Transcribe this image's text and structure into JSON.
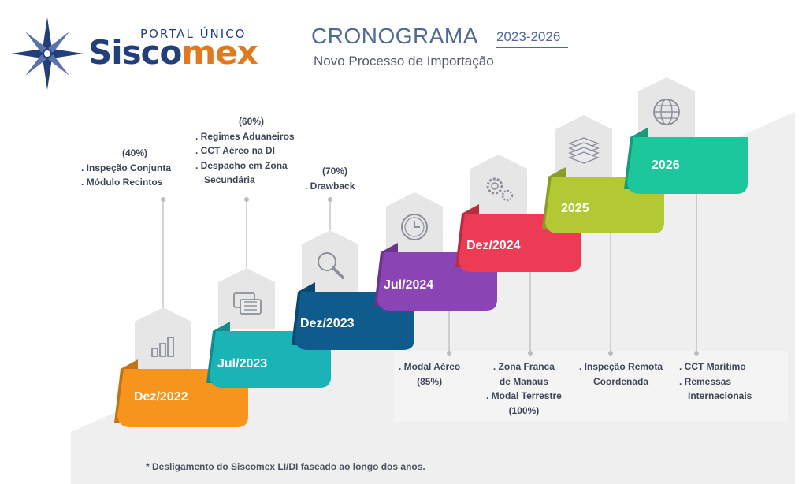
{
  "header": {
    "logo_portal": "PORTAL ÚNICO",
    "logo_word_a": "Sisco",
    "logo_word_b": "mex",
    "title": "CRONOGRAMA",
    "years": "2023-2026",
    "subtitle": "Novo Processo de Importação"
  },
  "steps": [
    {
      "label": "Dez/2022",
      "color": "#f7941d",
      "icon": "bar-chart-icon"
    },
    {
      "label": "Jul/2023",
      "color": "#1ab3b6",
      "icon": "chat-bubbles-icon"
    },
    {
      "label": "Dez/2023",
      "color": "#0f5c8c",
      "icon": "magnifier-icon"
    },
    {
      "label": "Jul/2024",
      "color": "#8a44b4",
      "icon": "clock-icon"
    },
    {
      "label": "Dez/2024",
      "color": "#ed3a55",
      "icon": "gears-icon"
    },
    {
      "label": "2025",
      "color": "#b2c934",
      "icon": "layers-icon"
    },
    {
      "label": "2026",
      "color": "#1dc79c",
      "icon": "globe-icon"
    }
  ],
  "notes": {
    "n2022": {
      "pct": "(40%)",
      "lines": [
        ". Inspeção Conjunta",
        ". Módulo Recintos"
      ]
    },
    "n2023a": {
      "pct": "(60%)",
      "lines": [
        ". Regimes Aduaneiros",
        ". CCT Aéreo na DI",
        ". Despacho em Zona",
        "Secundária"
      ]
    },
    "n2023b": {
      "pct": "(70%)",
      "lines": [
        ". Drawback"
      ]
    },
    "n2024a": {
      "lines": [
        ". Modal Aéreo",
        "(85%)"
      ]
    },
    "n2024b": {
      "lines": [
        ". Zona Franca",
        "de Manaus",
        ". Modal Terrestre",
        "(100%)"
      ]
    },
    "n2025": {
      "lines": [
        ". Inspeção Remota",
        "Coordenada"
      ]
    },
    "n2026": {
      "lines": [
        ". CCT Marítimo",
        ". Remessas",
        "Internacionais"
      ]
    }
  },
  "footnote": "* Desligamento do Siscomex LI/DI faseado ao longo dos anos."
}
